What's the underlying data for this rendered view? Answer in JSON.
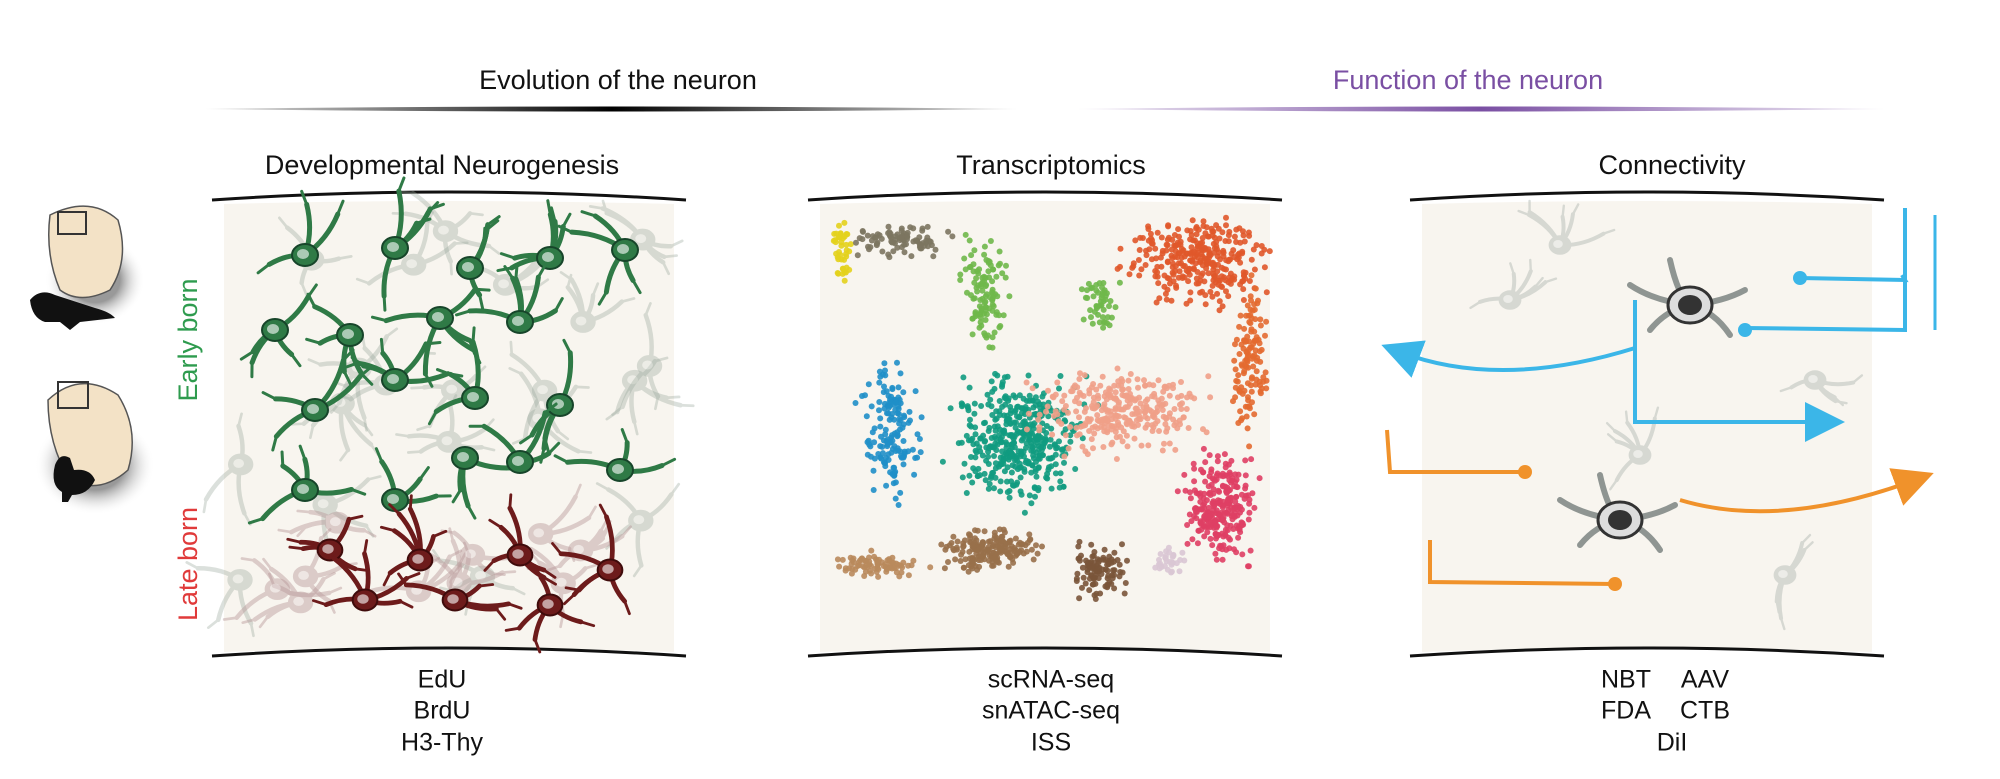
{
  "header": {
    "sections": [
      {
        "title": "Evolution of the neuron"
      },
      {
        "title": "Function of the neuron"
      }
    ]
  },
  "side_labels": {
    "early": "Early born",
    "late": "Late born"
  },
  "panels": [
    {
      "title": "Developmental Neurogenesis",
      "methods": [
        "EdU",
        "BrdU",
        "H3-Thy"
      ]
    },
    {
      "title": "Transcriptomics",
      "methods": [
        "scRNA-seq",
        "snATAC-seq",
        "ISS"
      ]
    },
    {
      "title": "Connectivity",
      "methods": [
        "NBT",
        "AAV",
        "FDA",
        "CTB",
        "DiI"
      ]
    }
  ]
}
